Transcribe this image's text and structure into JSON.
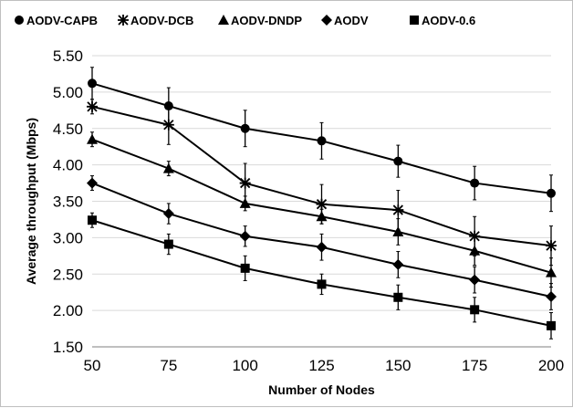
{
  "chart_data": {
    "type": "line",
    "xlabel": "Number of Nodes",
    "ylabel": "Average throughput (Mbps)",
    "x": [
      50,
      75,
      100,
      125,
      150,
      175,
      200
    ],
    "x_tick_labels": [
      "50",
      "75",
      "100",
      "125",
      "150",
      "175",
      "200"
    ],
    "ylim": [
      1.5,
      5.5
    ],
    "y_tick_labels": [
      "1.50",
      "2.00",
      "2.50",
      "3.00",
      "3.50",
      "4.00",
      "4.50",
      "5.00",
      "5.50"
    ],
    "grid": "horizontal",
    "legend_position": "top",
    "series": [
      {
        "name": "AODV-CAPB",
        "marker": "circle",
        "values": [
          5.12,
          4.81,
          4.5,
          4.33,
          4.05,
          3.75,
          3.61
        ],
        "error": [
          0.22,
          0.25,
          0.25,
          0.25,
          0.22,
          0.23,
          0.25
        ]
      },
      {
        "name": "AODV-DCB",
        "marker": "asterisk",
        "values": [
          4.8,
          4.55,
          3.75,
          3.46,
          3.38,
          3.02,
          2.89
        ],
        "error": [
          0.1,
          0.27,
          0.27,
          0.27,
          0.27,
          0.27,
          0.27
        ]
      },
      {
        "name": "AODV-DNDP",
        "marker": "triangle",
        "values": [
          4.35,
          3.95,
          3.47,
          3.29,
          3.08,
          2.82,
          2.52
        ],
        "error": [
          0.1,
          0.1,
          0.1,
          0.1,
          0.18,
          0.2,
          0.2
        ]
      },
      {
        "name": "AODV",
        "marker": "diamond",
        "values": [
          3.75,
          3.33,
          3.02,
          2.87,
          2.63,
          2.42,
          2.19
        ],
        "error": [
          0.1,
          0.14,
          0.14,
          0.18,
          0.18,
          0.18,
          0.18
        ]
      },
      {
        "name": "AODV-0.6",
        "marker": "square",
        "values": [
          3.24,
          2.91,
          2.58,
          2.36,
          2.18,
          2.01,
          1.79
        ],
        "error": [
          0.1,
          0.14,
          0.17,
          0.14,
          0.17,
          0.17,
          0.18
        ]
      }
    ],
    "colors": {
      "lines": "#000000",
      "grid": "#d9d9d9",
      "axis": "#7f7f7f",
      "border": "#bfbfbf"
    }
  }
}
